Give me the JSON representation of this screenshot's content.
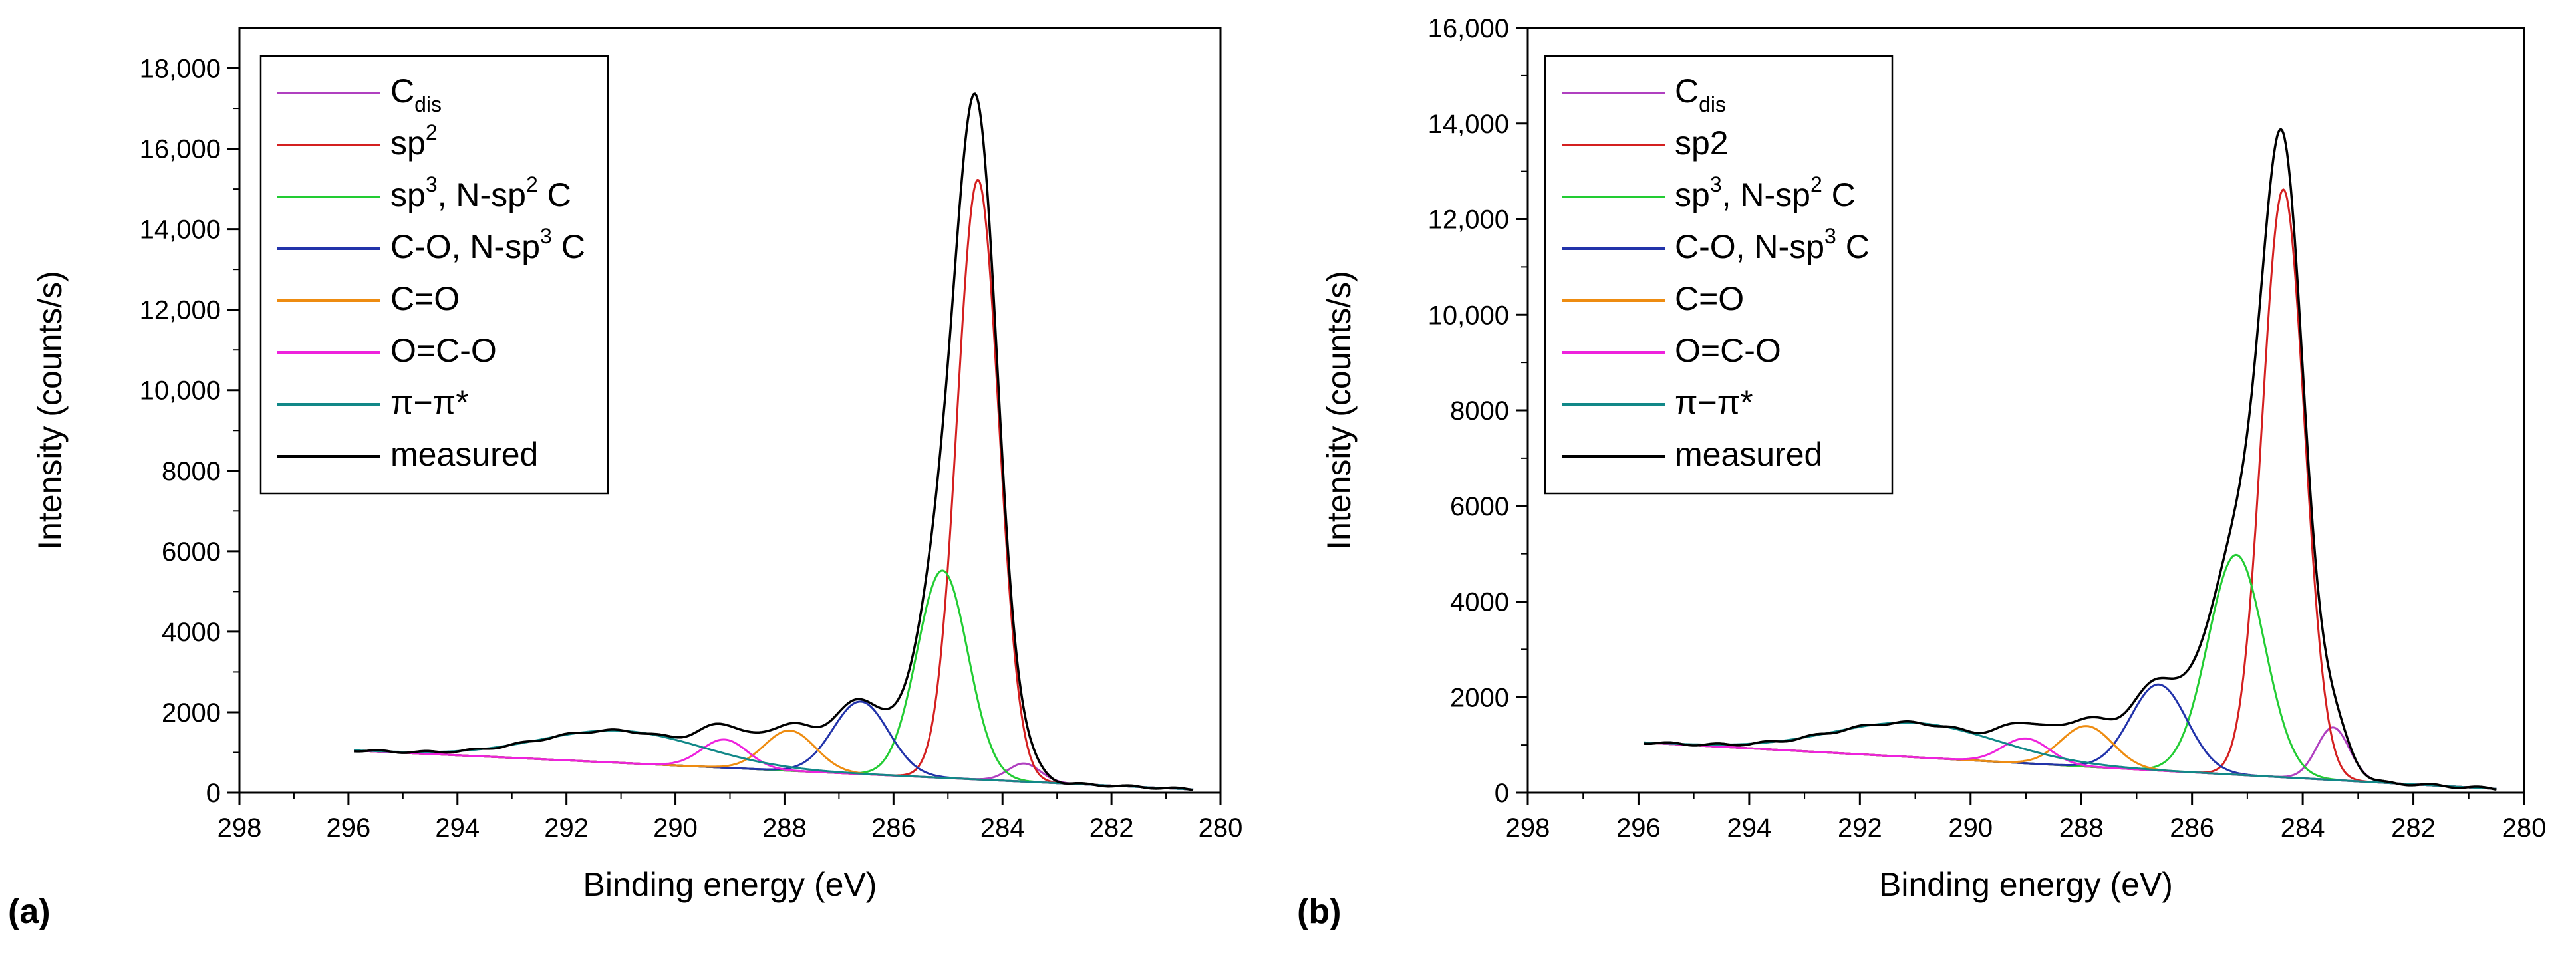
{
  "figure": {
    "panel_labels": [
      "(a)",
      "(b)"
    ]
  },
  "chart_data": [
    {
      "type": "line",
      "panel": "(a)",
      "title": "",
      "xlabel": "Binding energy (eV)",
      "ylabel": "Intensity (counts/s)",
      "xlim": [
        298,
        280
      ],
      "ylim": [
        0,
        19000
      ],
      "xticks": [
        298,
        296,
        294,
        292,
        290,
        288,
        286,
        284,
        282,
        280
      ],
      "xtick_labels": [
        "298",
        "296",
        "294",
        "292",
        "290",
        "288",
        "286",
        "284",
        "282",
        "280"
      ],
      "yticks": [
        0,
        2000,
        4000,
        6000,
        8000,
        10000,
        12000,
        14000,
        16000,
        18000
      ],
      "ytick_labels": [
        "0",
        "2000",
        "4000",
        "6000",
        "8000",
        "10,000",
        "12,000",
        "14,000",
        "16,000",
        "18,000"
      ],
      "legend": {
        "position": "top-left",
        "entries": [
          {
            "series": "Cdis",
            "main": "C",
            "sub": "dis",
            "rest": "",
            "color": "#b040c0"
          },
          {
            "series": "sp2",
            "main": "sp",
            "sup": "2",
            "rest": "",
            "color": "#d42020"
          },
          {
            "series": "sp3",
            "main": "sp",
            "sup": "3",
            "rest": ", N-sp",
            "sup2": "2",
            "rest2": " C",
            "color": "#22cc33"
          },
          {
            "series": "CO",
            "main": "C-O, N-sp",
            "sup": "3",
            "rest": " C",
            "color": "#2233aa"
          },
          {
            "series": "C=O",
            "main": "C=O",
            "color": "#ee8c11"
          },
          {
            "series": "O=C-O",
            "main": "O=C-O",
            "color": "#ee22dd"
          },
          {
            "series": "pi",
            "main": "π−π*",
            "color": "#118888"
          },
          {
            "series": "measured",
            "main": "measured",
            "color": "#000000"
          }
        ]
      },
      "background": {
        "start": 1050,
        "end": 80
      },
      "series": [
        {
          "name": "Cdis",
          "color": "#b040c0",
          "center": 283.6,
          "fwhm": 0.7,
          "amplitude": 450
        },
        {
          "name": "sp2",
          "color": "#d42020",
          "center": 284.45,
          "fwhm": 0.9,
          "amplitude": 14900
        },
        {
          "name": "sp3",
          "color": "#22cc33",
          "center": 285.1,
          "fwhm": 1.1,
          "amplitude": 5150
        },
        {
          "name": "CO",
          "color": "#2233aa",
          "center": 286.6,
          "fwhm": 1.2,
          "amplitude": 1800
        },
        {
          "name": "C=O",
          "color": "#ee8c11",
          "center": 287.9,
          "fwhm": 1.1,
          "amplitude": 1000
        },
        {
          "name": "O=C-O",
          "color": "#ee22dd",
          "center": 289.1,
          "fwhm": 1.0,
          "amplitude": 700
        },
        {
          "name": "pi",
          "color": "#118888",
          "center": 291.0,
          "fwhm": 3.5,
          "amplitude": 800
        },
        {
          "name": "measured",
          "color": "#000000",
          "x_range": [
            295.9,
            280.5
          ],
          "is_sum": true
        }
      ]
    },
    {
      "type": "line",
      "panel": "(b)",
      "title": "",
      "xlabel": "Binding energy (eV)",
      "ylabel": "Intensity (counts/s)",
      "xlim": [
        298,
        280
      ],
      "ylim": [
        0,
        16000
      ],
      "xticks": [
        298,
        296,
        294,
        292,
        290,
        288,
        286,
        284,
        282,
        280
      ],
      "xtick_labels": [
        "298",
        "296",
        "294",
        "292",
        "290",
        "288",
        "286",
        "284",
        "282",
        "280"
      ],
      "yticks": [
        0,
        2000,
        4000,
        6000,
        8000,
        10000,
        12000,
        14000,
        16000
      ],
      "ytick_labels": [
        "0",
        "2000",
        "4000",
        "6000",
        "8000",
        "10,000",
        "12,000",
        "14,000",
        "16,000"
      ],
      "legend": {
        "position": "top-left",
        "entries": [
          {
            "series": "Cdis",
            "main": "C",
            "sub": "dis",
            "rest": "",
            "color": "#b040c0"
          },
          {
            "series": "sp2",
            "main": "sp2",
            "color": "#d42020"
          },
          {
            "series": "sp3",
            "main": "sp",
            "sup": "3",
            "rest": ", N-sp",
            "sup2": "2",
            "rest2": " C",
            "color": "#22cc33"
          },
          {
            "series": "CO",
            "main": "C-O, N-sp",
            "sup": "3",
            "rest": " C",
            "color": "#2233aa"
          },
          {
            "series": "C=O",
            "main": "C=O",
            "color": "#ee8c11"
          },
          {
            "series": "O=C-O",
            "main": "O=C-O",
            "color": "#ee22dd"
          },
          {
            "series": "pi",
            "main": "π−π*",
            "color": "#118888"
          },
          {
            "series": "measured",
            "main": "measured",
            "color": "#000000"
          }
        ]
      },
      "background": {
        "start": 1050,
        "end": 80
      },
      "series": [
        {
          "name": "Cdis",
          "color": "#b040c0",
          "center": 283.45,
          "fwhm": 0.7,
          "amplitude": 1100
        },
        {
          "name": "sp2",
          "color": "#d42020",
          "center": 284.35,
          "fwhm": 0.9,
          "amplitude": 12300
        },
        {
          "name": "sp3",
          "color": "#22cc33",
          "center": 285.2,
          "fwhm": 1.2,
          "amplitude": 4600
        },
        {
          "name": "CO",
          "color": "#2233aa",
          "center": 286.6,
          "fwhm": 1.2,
          "amplitude": 1800
        },
        {
          "name": "C=O",
          "color": "#ee8c11",
          "center": 287.9,
          "fwhm": 1.1,
          "amplitude": 850
        },
        {
          "name": "O=C-O",
          "color": "#ee22dd",
          "center": 289.0,
          "fwhm": 1.0,
          "amplitude": 520
        },
        {
          "name": "pi",
          "color": "#118888",
          "center": 291.0,
          "fwhm": 3.5,
          "amplitude": 720
        },
        {
          "name": "measured",
          "color": "#000000",
          "x_range": [
            295.9,
            280.5
          ],
          "is_sum": true
        }
      ]
    }
  ]
}
